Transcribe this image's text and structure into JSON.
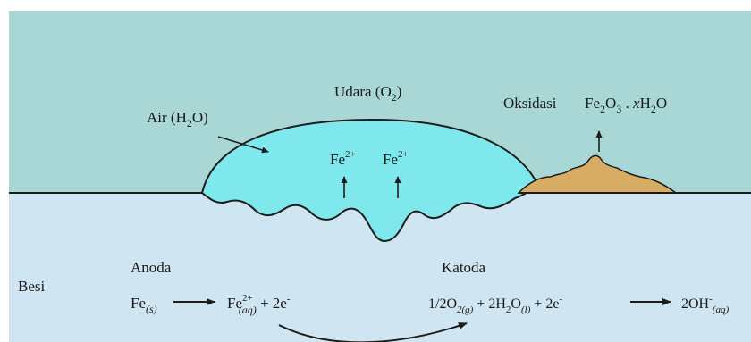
{
  "labels": {
    "udara": "Udara (O",
    "udara_sub": "2",
    "udara_close": ")",
    "air": "Air (H",
    "air_sub": "2",
    "air_close": "O)",
    "oksidasi": "Oksidasi",
    "rust_fe": "Fe",
    "rust_sub1": "2",
    "rust_o": "O",
    "rust_sub2": "3",
    "rust_dot": " . ",
    "rust_x": "x",
    "rust_h": "H",
    "rust_sub3": "2",
    "rust_o2": "O",
    "ion1": "Fe",
    "ion1_sup": "2+",
    "ion2": "Fe",
    "ion2_sup": "2+",
    "besi": "Besi",
    "anoda": "Anoda",
    "katoda": "Katoda"
  },
  "anode_eq": {
    "fe": "Fe",
    "fe_sub": "(s)",
    "ion": "Fe",
    "ion_sup": "2+",
    "ion_sub": "(aq)",
    "rest": " + 2e",
    "rest_sup": "-"
  },
  "cathode_eq": {
    "t1": "1/2O",
    "t1_sub": "2(g)",
    "t2": " + 2H",
    "t2_sub1": "2",
    "t3": "O",
    "t3_sub": "(l)",
    "t4": " + 2e",
    "t4_sup": "-",
    "prod": "2OH",
    "prod_sup": "-",
    "prod_sub": "(aq)"
  },
  "colors": {
    "air_bg": "#a9d7d5",
    "iron_bg": "#cfe5f1",
    "droplet": "#7fe8ec",
    "rust": "#d8ac62",
    "line": "#1c1c1c"
  }
}
